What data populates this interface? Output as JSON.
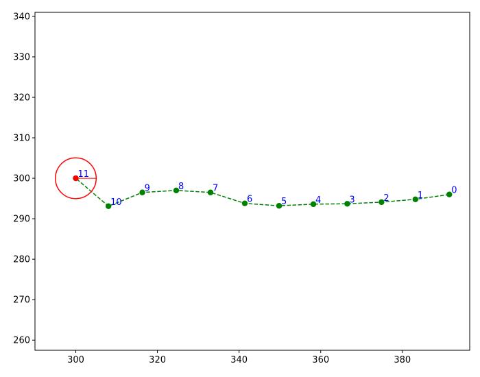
{
  "chart_data": {
    "type": "scatter",
    "title": "",
    "xlabel": "",
    "ylabel": "",
    "xlim": [
      290,
      396.5
    ],
    "ylim": [
      257.5,
      341
    ],
    "grid": false,
    "x_ticks": [
      300,
      320,
      340,
      360,
      380
    ],
    "y_ticks": [
      260,
      270,
      280,
      290,
      300,
      310,
      320,
      330,
      340
    ],
    "series": [
      {
        "style": "dashed-line-with-markers",
        "color": "#008000",
        "label_color": "#0000ff",
        "points": [
          {
            "label": "0",
            "x": 391.5,
            "y": 296.0
          },
          {
            "label": "1",
            "x": 383.2,
            "y": 294.8
          },
          {
            "label": "2",
            "x": 374.9,
            "y": 294.1
          },
          {
            "label": "3",
            "x": 366.5,
            "y": 293.7
          },
          {
            "label": "4",
            "x": 358.2,
            "y": 293.6
          },
          {
            "label": "5",
            "x": 349.8,
            "y": 293.2
          },
          {
            "label": "6",
            "x": 341.4,
            "y": 293.8
          },
          {
            "label": "7",
            "x": 333.0,
            "y": 296.5
          },
          {
            "label": "8",
            "x": 324.6,
            "y": 297.0
          },
          {
            "label": "9",
            "x": 316.3,
            "y": 296.5
          },
          {
            "label": "10",
            "x": 308.0,
            "y": 293.1
          },
          {
            "label": "11",
            "x": 300.0,
            "y": 300.0
          }
        ]
      }
    ],
    "current_point": {
      "x": 300.0,
      "y": 300.0,
      "color": "#ff0000"
    },
    "circle": {
      "center_x": 300.0,
      "center_y": 300.0,
      "radius": 5,
      "color": "#ff0000"
    }
  }
}
